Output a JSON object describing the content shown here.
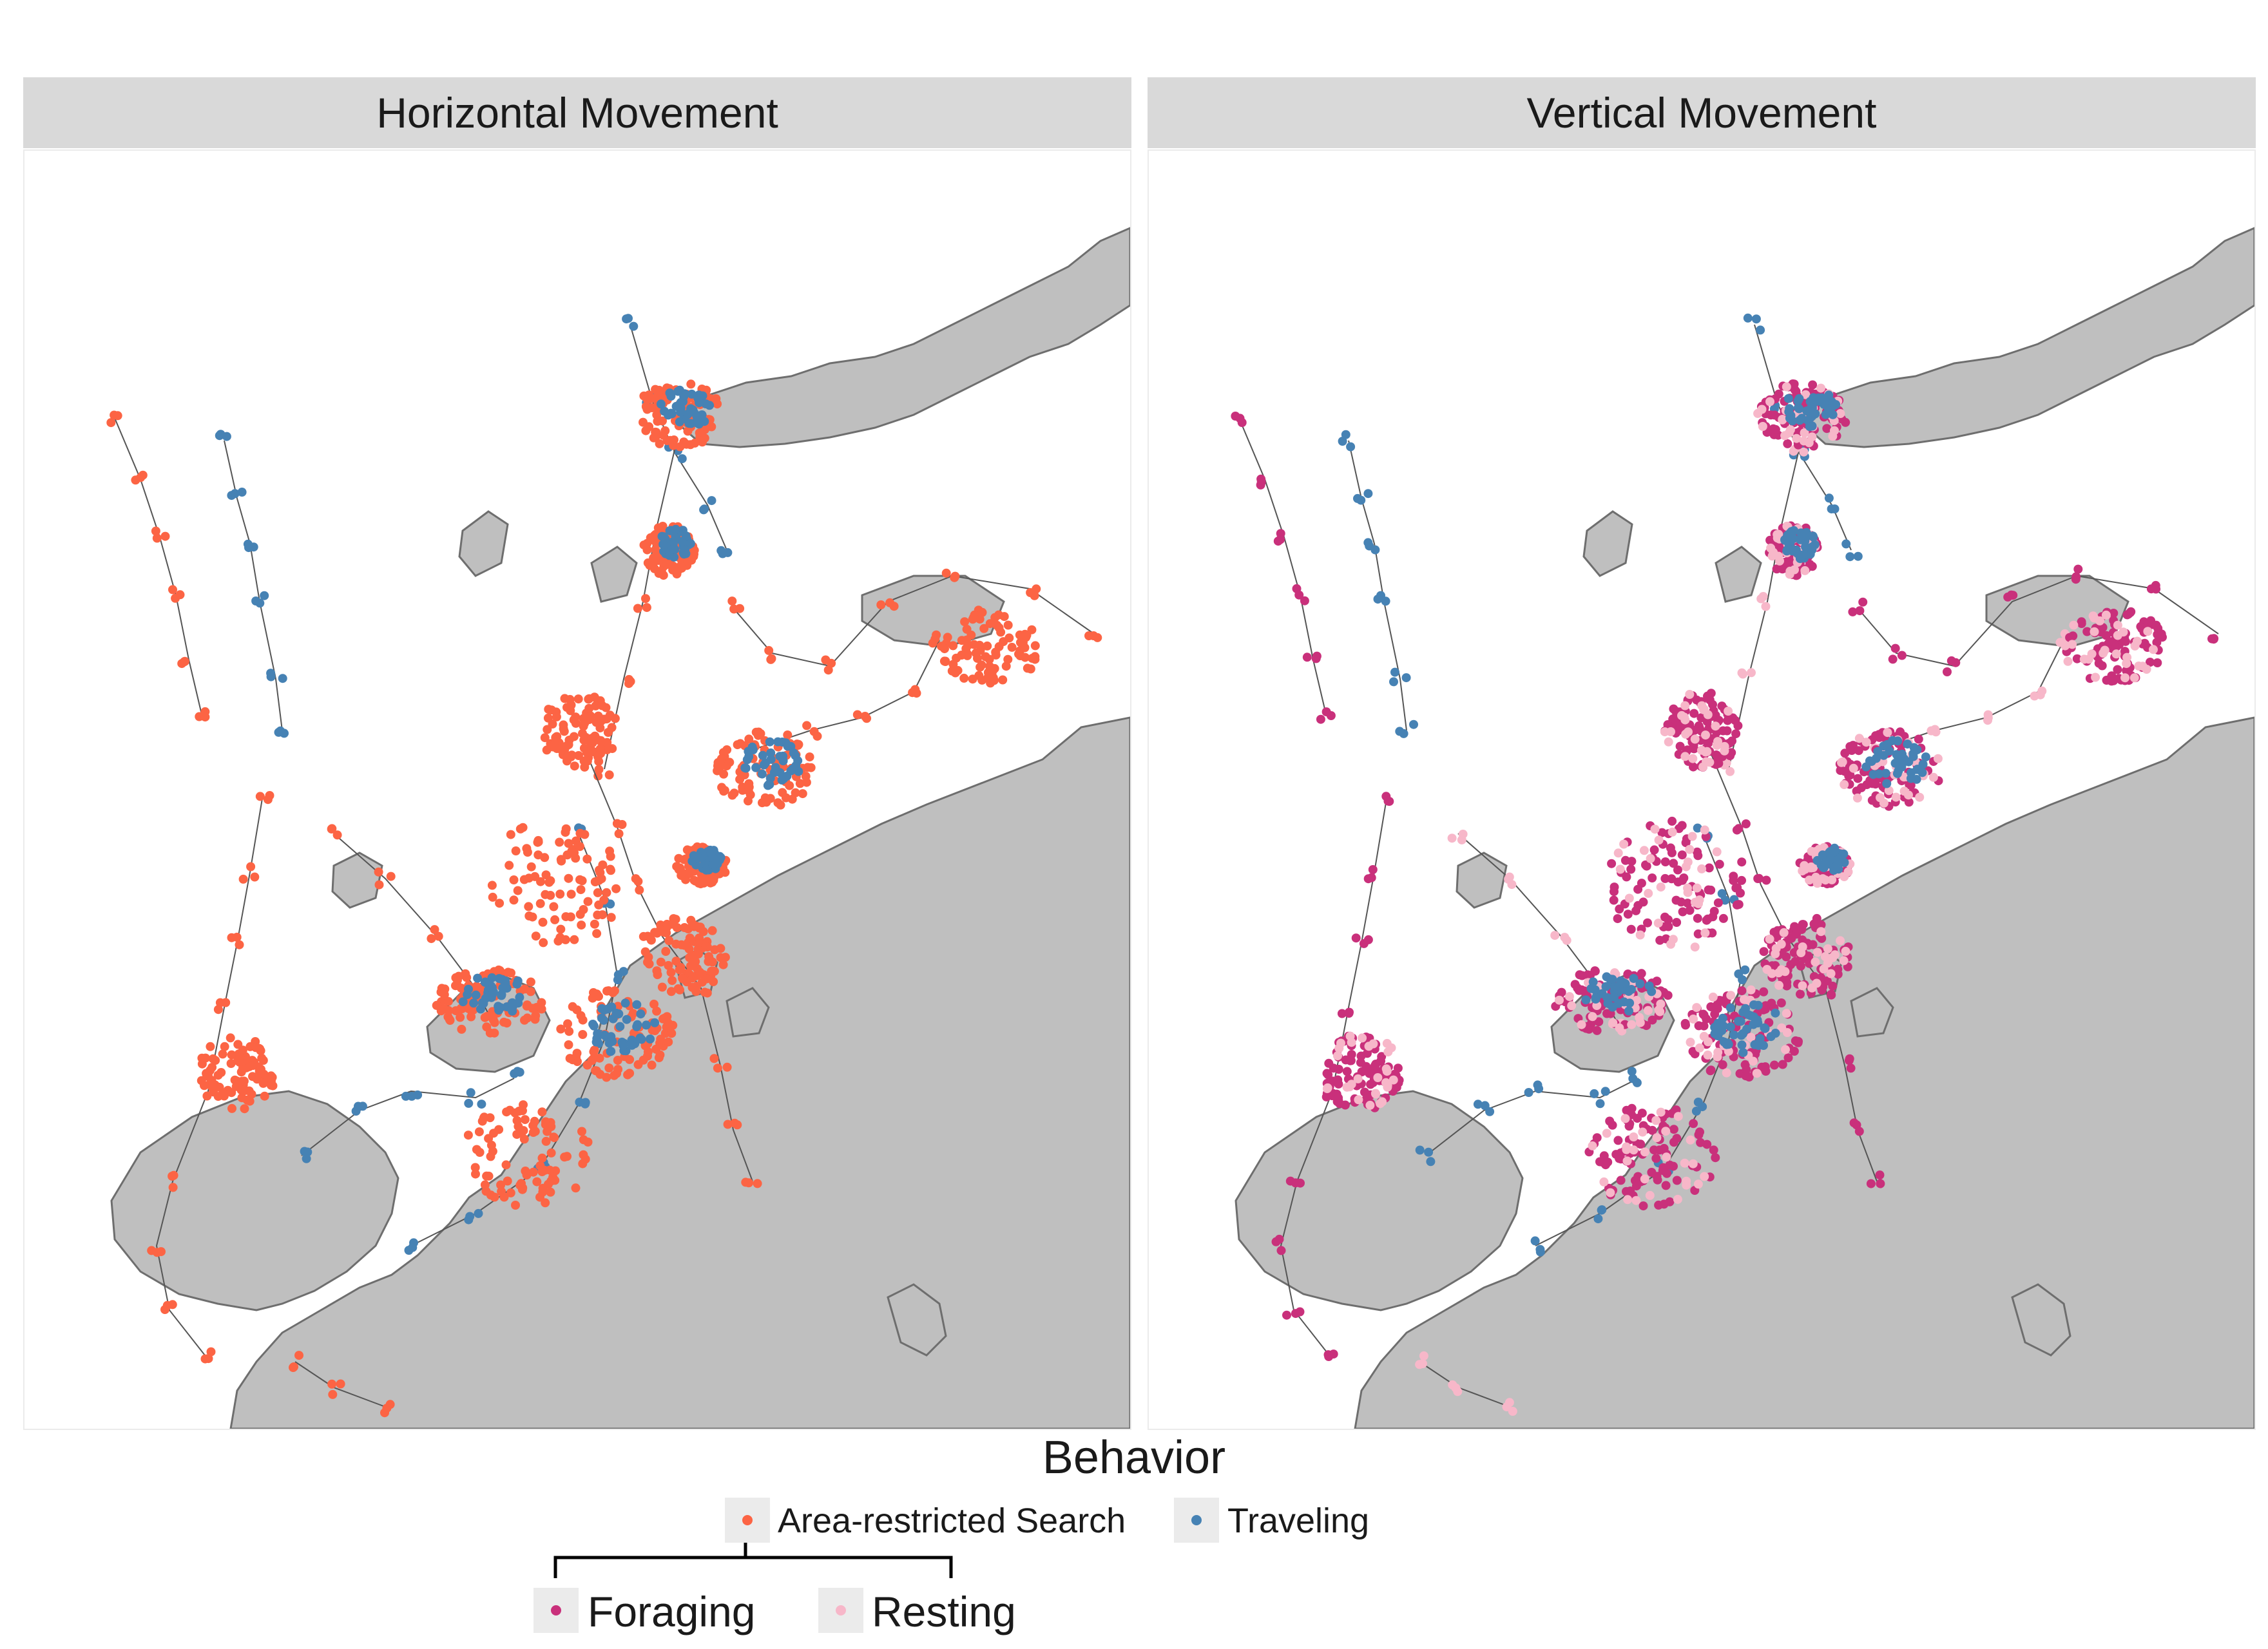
{
  "panels": [
    {
      "id": "horizontal",
      "title": "Horizontal Movement",
      "behaviors": [
        "area_restricted_search",
        "traveling"
      ]
    },
    {
      "id": "vertical",
      "title": "Vertical Movement",
      "behaviors": [
        "foraging",
        "resting",
        "traveling"
      ]
    }
  ],
  "legend": {
    "title": "Behavior",
    "items": {
      "area_restricted_search": {
        "label": "Area-restricted Search",
        "color": "#fc6444"
      },
      "traveling": {
        "label": "Traveling",
        "color": "#4682b4"
      },
      "foraging": {
        "label": "Foraging",
        "color": "#c9307b"
      },
      "resting": {
        "label": "Resting",
        "color": "#f7b7c9"
      }
    },
    "sub_split": {
      "parent": "area_restricted_search",
      "children": [
        "foraging",
        "resting"
      ]
    }
  },
  "colors": {
    "land": "#bfbfbf",
    "coast": "#6e6e6e",
    "track_line": "#555555",
    "strip": "#d9d9d9",
    "panel_border": "#ebebeb"
  }
}
